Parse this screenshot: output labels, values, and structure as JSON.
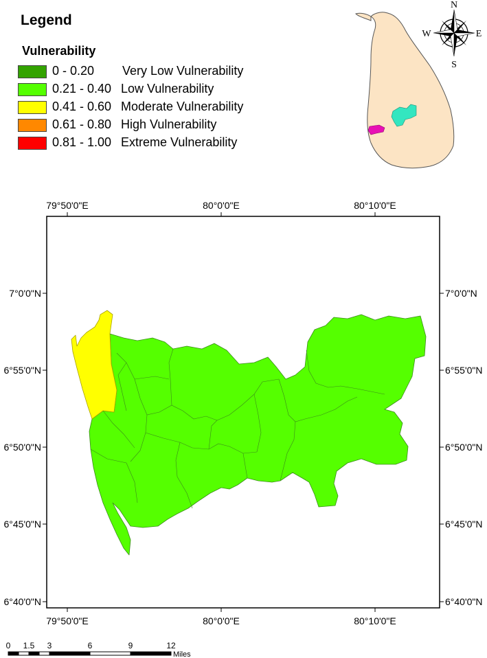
{
  "legend": {
    "title": "Legend",
    "subtitle": "Vulnerability",
    "items": [
      {
        "range": "0 - 0.20",
        "label": "Very Low Vulnerability",
        "color": "#33a300"
      },
      {
        "range": "0.21 - 0.40",
        "label": "Low Vulnerability",
        "color": "#55ff00"
      },
      {
        "range": "0.41 - 0.60",
        "label": "Moderate Vulnerability",
        "color": "#ffff00"
      },
      {
        "range": "0.61 - 0.80",
        "label": "High Vulnerability",
        "color": "#ff8800"
      },
      {
        "range": "0.81 - 1.00",
        "label": "Extreme Vulnerability",
        "color": "#ff0000"
      }
    ]
  },
  "compass": {
    "n": "N",
    "s": "S",
    "e": "E",
    "w": "W"
  },
  "inset": {
    "island_color": "#fce4c4",
    "area_a_color": "#33e6c0",
    "area_b_color": "#e810b4"
  },
  "axes": {
    "top": [
      "79°50'0\"E",
      "80°0'0\"E",
      "80°10'0\"E"
    ],
    "bottom": [
      "79°50'0\"E",
      "80°0'0\"E",
      "80°10'0\"E"
    ],
    "left": [
      "7°0'0\"N",
      "6°55'0\"N",
      "6°50'0\"N",
      "6°45'0\"N",
      "6°40'0\"N"
    ],
    "right": [
      "7°0'0\"N",
      "6°55'0\"N",
      "6°50'0\"N",
      "6°45'0\"N",
      "6°40'0\"N"
    ]
  },
  "map_colors": {
    "low": "#55ff00",
    "moderate": "#ffff00"
  },
  "scale_bar": {
    "labels": [
      "0",
      "1.5",
      "3",
      "6",
      "9",
      "12"
    ],
    "unit": "Miles"
  }
}
